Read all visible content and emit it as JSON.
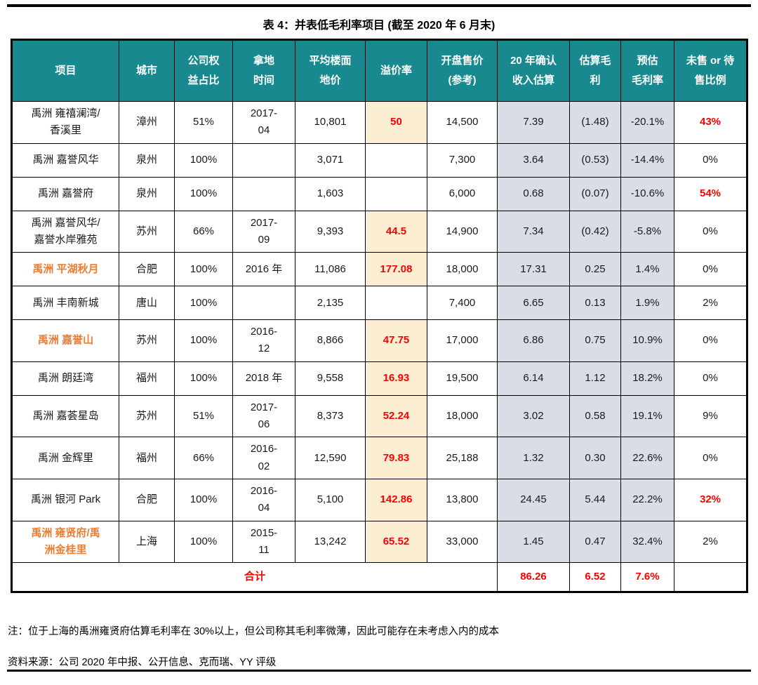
{
  "page": {
    "title": "表 4：并表低毛利率项目 (截至 2020 年 6 月末)",
    "note": "注：位于上海的禹洲雍贤府估算毛利率在 30%以上，但公司称其毛利率微薄，因此可能存在未考虑入内的成本",
    "source": "资料来源：公司 2020 年中报、公开信息、克而瑞、YY 评级"
  },
  "colors": {
    "header_bg": "#18898F",
    "premium_cell_bg": "#FBEED3",
    "estimate_cell_bg": "#D9DEE6",
    "highlight_red": "#FB0200",
    "highlight_orange": "#ED7D31"
  },
  "chart_data": {
    "type": "table",
    "title": "表 4：并表低毛利率项目 (截至 2020 年 6 月末)",
    "columns": [
      "项目",
      "城市",
      "公司权益占比",
      "拿地时间",
      "平均楼面地价",
      "溢价率",
      "开盘售价(参考)",
      "20 年确认收入估算",
      "估算毛利",
      "预估毛利率",
      "未售 or 待售比例"
    ],
    "totals": {
      "收入": 86.26,
      "毛利": 6.52,
      "毛利率": "7.6%"
    }
  },
  "table": {
    "headers": [
      "项目",
      "城市",
      "公司权\n益占比",
      "拿地\n时间",
      "平均楼面\n地价",
      "溢价率",
      "开盘售价\n(参考)",
      "20 年确认\n收入估算",
      "估算毛\n利",
      "预估\n毛利率",
      "未售 or 待\n售比例"
    ],
    "rows": [
      {
        "project": "禹洲 雍禧澜湾/\n香溪里",
        "city": "漳州",
        "equity": "51%",
        "land_date": "2017-\n04",
        "floor_price": "10,801",
        "premium": "50",
        "opening_price": "14,500",
        "revenue": "7.39",
        "gross_profit": "(1.48)",
        "gross_margin": "-20.1%",
        "unsold": "43%",
        "orange_project": false,
        "unsold_red": true
      },
      {
        "project": "禹洲 嘉誉风华",
        "city": "泉州",
        "equity": "100%",
        "land_date": "",
        "floor_price": "3,071",
        "premium": "",
        "opening_price": "7,300",
        "revenue": "3.64",
        "gross_profit": "(0.53)",
        "gross_margin": "-14.4%",
        "unsold": "0%",
        "orange_project": false,
        "unsold_red": false
      },
      {
        "project": "禹洲 嘉誉府",
        "city": "泉州",
        "equity": "100%",
        "land_date": "",
        "floor_price": "1,603",
        "premium": "",
        "opening_price": "6,000",
        "revenue": "0.68",
        "gross_profit": "(0.07)",
        "gross_margin": "-10.6%",
        "unsold": "54%",
        "orange_project": false,
        "unsold_red": true
      },
      {
        "project": "禹洲 嘉誉风华/\n嘉誉水岸雅苑",
        "city": "苏州",
        "equity": "66%",
        "land_date": "2017-\n09",
        "floor_price": "9,393",
        "premium": "44.5",
        "opening_price": "14,900",
        "revenue": "7.34",
        "gross_profit": "(0.42)",
        "gross_margin": "-5.8%",
        "unsold": "0%",
        "orange_project": false,
        "unsold_red": false
      },
      {
        "project": "禹洲 平湖秋月",
        "city": "合肥",
        "equity": "100%",
        "land_date": "2016 年",
        "floor_price": "11,086",
        "premium": "177.08",
        "opening_price": "18,000",
        "revenue": "17.31",
        "gross_profit": "0.25",
        "gross_margin": "1.4%",
        "unsold": "0%",
        "orange_project": true,
        "unsold_red": false
      },
      {
        "project": "禹洲 丰南新城",
        "city": "唐山",
        "equity": "100%",
        "land_date": "",
        "floor_price": "2,135",
        "premium": "",
        "opening_price": "7,400",
        "revenue": "6.65",
        "gross_profit": "0.13",
        "gross_margin": "1.9%",
        "unsold": "2%",
        "orange_project": false,
        "unsold_red": false
      },
      {
        "project": "禹洲 嘉誉山",
        "city": "苏州",
        "equity": "100%",
        "land_date": "2016-\n12",
        "floor_price": "8,866",
        "premium": "47.75",
        "opening_price": "17,000",
        "revenue": "6.86",
        "gross_profit": "0.75",
        "gross_margin": "10.9%",
        "unsold": "0%",
        "orange_project": true,
        "unsold_red": false
      },
      {
        "project": "禹洲 朗廷湾",
        "city": "福州",
        "equity": "100%",
        "land_date": "2018 年",
        "floor_price": "9,558",
        "premium": "16.93",
        "opening_price": "19,500",
        "revenue": "6.14",
        "gross_profit": "1.12",
        "gross_margin": "18.2%",
        "unsold": "0%",
        "orange_project": false,
        "unsold_red": false
      },
      {
        "project": "禹洲 嘉荟星岛",
        "city": "苏州",
        "equity": "51%",
        "land_date": "2017-\n06",
        "floor_price": "8,373",
        "premium": "52.24",
        "opening_price": "18,000",
        "revenue": "3.02",
        "gross_profit": "0.58",
        "gross_margin": "19.1%",
        "unsold": "9%",
        "orange_project": false,
        "unsold_red": false
      },
      {
        "project": "禹洲 金辉里",
        "city": "福州",
        "equity": "66%",
        "land_date": "2016-\n02",
        "floor_price": "12,590",
        "premium": "79.83",
        "opening_price": "25,188",
        "revenue": "1.32",
        "gross_profit": "0.30",
        "gross_margin": "22.6%",
        "unsold": "0%",
        "orange_project": false,
        "unsold_red": false
      },
      {
        "project": "禹洲 银河 Park",
        "city": "合肥",
        "equity": "100%",
        "land_date": "2016-\n04",
        "floor_price": "5,100",
        "premium": "142.86",
        "opening_price": "13,800",
        "revenue": "24.45",
        "gross_profit": "5.44",
        "gross_margin": "22.2%",
        "unsold": "32%",
        "orange_project": false,
        "unsold_red": true
      },
      {
        "project": "禹洲 雍贤府/禹\n洲金桂里",
        "city": "上海",
        "equity": "100%",
        "land_date": "2015-\n11",
        "floor_price": "13,242",
        "premium": "65.52",
        "opening_price": "33,000",
        "revenue": "1.45",
        "gross_profit": "0.47",
        "gross_margin": "32.4%",
        "unsold": "2%",
        "orange_project": true,
        "unsold_red": false
      }
    ],
    "total": {
      "label": "合计",
      "revenue": "86.26",
      "gross_profit": "6.52",
      "gross_margin": "7.6%",
      "unsold": ""
    }
  }
}
